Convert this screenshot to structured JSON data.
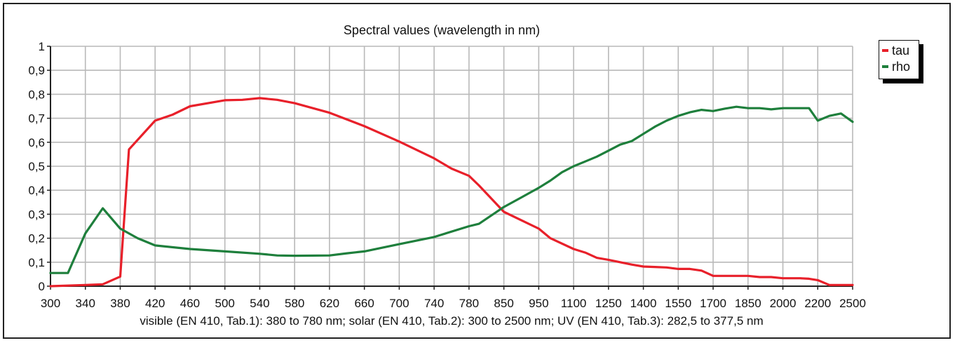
{
  "chart_data": {
    "type": "line",
    "title": "Spectral values  (wavelength in nm)",
    "xlabel": "visible (EN 410, Tab.1): 380 to 780 nm;  solar (EN 410, Tab.2): 300 to 2500 nm; UV (EN 410, Tab.3): 282,5 to 377,5 nm",
    "ylabel": "",
    "ylim": [
      0,
      1
    ],
    "yticks": [
      0,
      0.1,
      0.2,
      0.3,
      0.4,
      0.5,
      0.6,
      0.7,
      0.8,
      0.9,
      1
    ],
    "ytick_labels": [
      "0",
      "0,1",
      "0,2",
      "0,3",
      "0,4",
      "0,5",
      "0,6",
      "0,7",
      "0,8",
      "0,9",
      "1"
    ],
    "x_ticks": [
      "300",
      "340",
      "380",
      "420",
      "460",
      "500",
      "540",
      "580",
      "620",
      "660",
      "700",
      "740",
      "780",
      "850",
      "950",
      "1100",
      "1250",
      "1400",
      "1550",
      "1700",
      "1850",
      "2000",
      "2200",
      "2500"
    ],
    "grid": true,
    "legend_position": "top-right",
    "series": [
      {
        "name": "tau",
        "color": "#e8202a",
        "points": [
          [
            300,
            0
          ],
          [
            340,
            0.005
          ],
          [
            360,
            0.008
          ],
          [
            380,
            0.04
          ],
          [
            390,
            0.57
          ],
          [
            420,
            0.69
          ],
          [
            440,
            0.715
          ],
          [
            460,
            0.75
          ],
          [
            500,
            0.775
          ],
          [
            520,
            0.777
          ],
          [
            540,
            0.784
          ],
          [
            560,
            0.777
          ],
          [
            580,
            0.763
          ],
          [
            620,
            0.723
          ],
          [
            660,
            0.667
          ],
          [
            700,
            0.603
          ],
          [
            740,
            0.533
          ],
          [
            760,
            0.49
          ],
          [
            780,
            0.46
          ],
          [
            800,
            0.42
          ],
          [
            850,
            0.31
          ],
          [
            950,
            0.24
          ],
          [
            1000,
            0.2
          ],
          [
            1100,
            0.155
          ],
          [
            1150,
            0.14
          ],
          [
            1200,
            0.118
          ],
          [
            1250,
            0.11
          ],
          [
            1300,
            0.1
          ],
          [
            1350,
            0.09
          ],
          [
            1400,
            0.082
          ],
          [
            1450,
            0.08
          ],
          [
            1500,
            0.078
          ],
          [
            1550,
            0.072
          ],
          [
            1600,
            0.072
          ],
          [
            1650,
            0.065
          ],
          [
            1700,
            0.043
          ],
          [
            1750,
            0.043
          ],
          [
            1800,
            0.043
          ],
          [
            1850,
            0.043
          ],
          [
            1900,
            0.038
          ],
          [
            1950,
            0.038
          ],
          [
            2000,
            0.033
          ],
          [
            2050,
            0.033
          ],
          [
            2100,
            0.033
          ],
          [
            2150,
            0.031
          ],
          [
            2200,
            0.025
          ],
          [
            2300,
            0.005
          ],
          [
            2400,
            0.005
          ],
          [
            2500,
            0.005
          ]
        ]
      },
      {
        "name": "rho",
        "color": "#1e7f3c",
        "points": [
          [
            300,
            0.055
          ],
          [
            320,
            0.055
          ],
          [
            340,
            0.22
          ],
          [
            360,
            0.325
          ],
          [
            380,
            0.24
          ],
          [
            400,
            0.2
          ],
          [
            420,
            0.17
          ],
          [
            460,
            0.155
          ],
          [
            500,
            0.145
          ],
          [
            540,
            0.135
          ],
          [
            560,
            0.128
          ],
          [
            580,
            0.127
          ],
          [
            620,
            0.128
          ],
          [
            640,
            0.137
          ],
          [
            660,
            0.145
          ],
          [
            700,
            0.175
          ],
          [
            740,
            0.205
          ],
          [
            780,
            0.25
          ],
          [
            800,
            0.26
          ],
          [
            850,
            0.33
          ],
          [
            900,
            0.37
          ],
          [
            950,
            0.41
          ],
          [
            1000,
            0.44
          ],
          [
            1050,
            0.475
          ],
          [
            1100,
            0.5
          ],
          [
            1150,
            0.52
          ],
          [
            1200,
            0.54
          ],
          [
            1250,
            0.565
          ],
          [
            1300,
            0.59
          ],
          [
            1350,
            0.605
          ],
          [
            1400,
            0.635
          ],
          [
            1450,
            0.665
          ],
          [
            1500,
            0.69
          ],
          [
            1550,
            0.71
          ],
          [
            1600,
            0.725
          ],
          [
            1650,
            0.735
          ],
          [
            1700,
            0.73
          ],
          [
            1750,
            0.74
          ],
          [
            1800,
            0.748
          ],
          [
            1850,
            0.742
          ],
          [
            1900,
            0.742
          ],
          [
            1950,
            0.737
          ],
          [
            2000,
            0.742
          ],
          [
            2050,
            0.742
          ],
          [
            2100,
            0.742
          ],
          [
            2150,
            0.742
          ],
          [
            2200,
            0.69
          ],
          [
            2300,
            0.71
          ],
          [
            2400,
            0.72
          ],
          [
            2500,
            0.685
          ]
        ]
      }
    ]
  }
}
